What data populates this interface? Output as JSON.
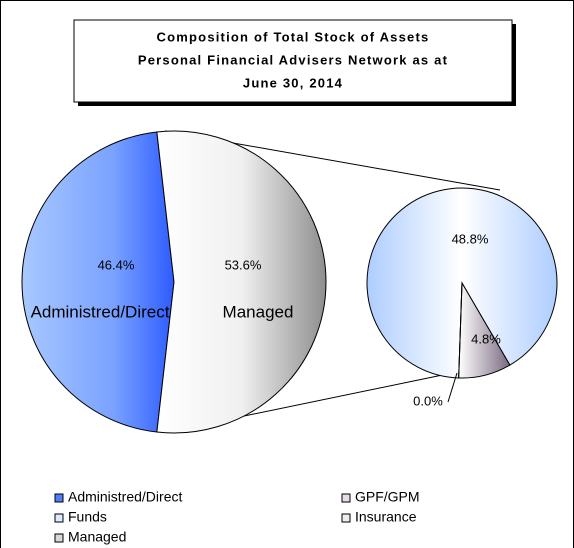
{
  "chart_data": {
    "type": "pie-of-pie",
    "title": [
      "Composition of Total Stock of Assets",
      "Personal Financial Advisers Network as at",
      "June 30, 2014"
    ],
    "pies": [
      {
        "categories": [
          "Administred/Direct",
          "Managed"
        ],
        "values": [
          46.4,
          53.6
        ],
        "value_labels": [
          "46.4%",
          "53.6%"
        ],
        "colors": [
          "#4d7fff",
          "#d8d8d8"
        ]
      },
      {
        "categories": [
          "Funds",
          "GPF/GPM",
          "Insurance"
        ],
        "values": [
          48.8,
          4.8,
          0.0
        ],
        "value_labels": [
          "48.8%",
          "4.8%",
          "0.0%"
        ],
        "colors": [
          "#dde9ff",
          "#e6dcea",
          "#eeeeee"
        ]
      }
    ],
    "legend": [
      {
        "name": "Administred/Direct",
        "color": "#4d7fff"
      },
      {
        "name": "GPF/GPM",
        "color": "#e6dcea"
      },
      {
        "name": "Funds",
        "color": "#dde9ff"
      },
      {
        "name": "Insurance",
        "color": "#eeeeee"
      },
      {
        "name": "Managed",
        "color": "#d8d8d8"
      }
    ]
  }
}
